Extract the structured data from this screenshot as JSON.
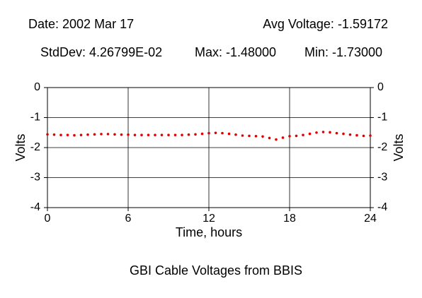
{
  "chart_data": {
    "type": "scatter",
    "title": "GBI Cable Voltages from BBIS",
    "header": {
      "date": "Date: 2002 Mar 17",
      "avg": "Avg Voltage: -1.59172",
      "stddev": "StdDev: 4.26799E-02",
      "max": "Max: -1.48000",
      "min": "Min: -1.73000"
    },
    "xlabel": "Time, hours",
    "ylabel": "Volts",
    "y2label": "Volts",
    "xlim": [
      0,
      24
    ],
    "xticks": [
      0,
      6,
      12,
      18,
      24
    ],
    "ylim": [
      -4,
      0
    ],
    "yticks": [
      0,
      -1,
      -2,
      -3,
      -4
    ],
    "y2lim": [
      -4,
      0
    ],
    "y2ticks": [
      0,
      -1,
      -2,
      -3,
      -4
    ],
    "grid": true,
    "color": "#e00000",
    "x": [
      0,
      0.5,
      1,
      1.5,
      2,
      2.5,
      3,
      3.5,
      4,
      4.5,
      5,
      5.5,
      6,
      6.5,
      7,
      7.5,
      8,
      8.5,
      9,
      9.5,
      10,
      10.5,
      11,
      11.5,
      12,
      12.5,
      13,
      13.5,
      14,
      14.5,
      15,
      15.5,
      16,
      16.5,
      17,
      17.5,
      18,
      18.5,
      19,
      19.5,
      20,
      20.5,
      21,
      21.5,
      22,
      22.5,
      23,
      23.5,
      24
    ],
    "values": [
      -1.56,
      -1.57,
      -1.58,
      -1.58,
      -1.59,
      -1.58,
      -1.57,
      -1.56,
      -1.55,
      -1.55,
      -1.56,
      -1.57,
      -1.57,
      -1.58,
      -1.58,
      -1.58,
      -1.58,
      -1.58,
      -1.58,
      -1.58,
      -1.58,
      -1.57,
      -1.56,
      -1.54,
      -1.52,
      -1.51,
      -1.52,
      -1.54,
      -1.57,
      -1.6,
      -1.61,
      -1.62,
      -1.63,
      -1.68,
      -1.73,
      -1.67,
      -1.62,
      -1.61,
      -1.58,
      -1.54,
      -1.5,
      -1.48,
      -1.49,
      -1.52,
      -1.54,
      -1.57,
      -1.59,
      -1.61,
      -1.6
    ]
  }
}
